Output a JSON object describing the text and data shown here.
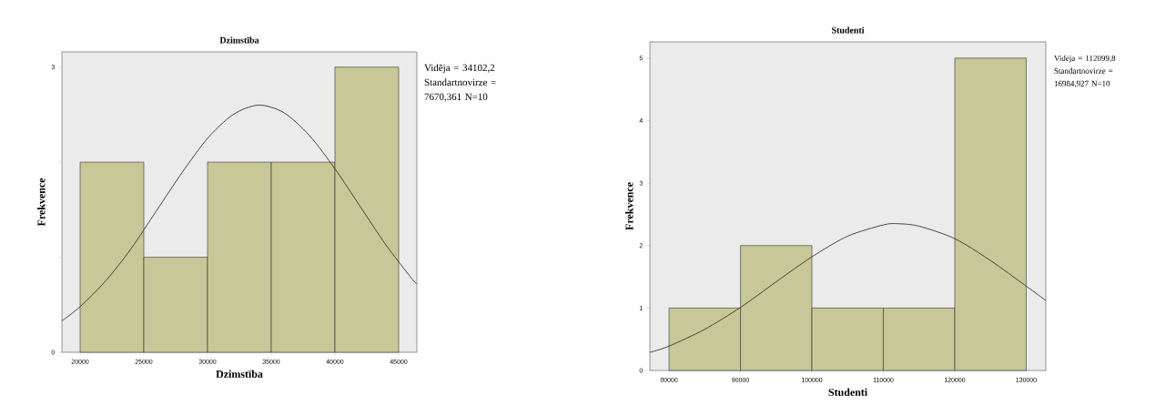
{
  "chart_data": [
    {
      "type": "histogram",
      "title": "Dzimstība",
      "xlabel": "Dzimstība",
      "ylabel": "Frekvence",
      "bins": [
        20000,
        25000,
        30000,
        35000,
        40000,
        45000
      ],
      "values": [
        2,
        1,
        2,
        2,
        3
      ],
      "color": "#c8c797",
      "xlim": [
        18570,
        46430
      ],
      "ylim": [
        0,
        3.16
      ],
      "xticks": [
        20000,
        25000,
        30000,
        35000,
        40000,
        45000
      ],
      "yticks": [
        0,
        {
          "value": 1,
          "label": null
        },
        {
          "value": 2,
          "label": null
        },
        3
      ],
      "grid": false,
      "annotations": [
        "Vidēja = 34102,2",
        "Standartnovirze = 7670,361 N=10"
      ],
      "series": [
        {
          "type": "line",
          "color": "#333333",
          "x": [
            18570,
            20000,
            22000,
            24000,
            26000,
            28000,
            30000,
            32000,
            34000,
            36000,
            38000,
            40000,
            42000,
            44000,
            46000,
            46430
          ],
          "values": [
            0.33,
            0.48,
            0.75,
            1.09,
            1.49,
            1.89,
            2.25,
            2.5,
            2.6,
            2.52,
            2.28,
            1.93,
            1.53,
            1.13,
            0.78,
            0.72
          ]
        }
      ]
    },
    {
      "type": "histogram",
      "title": "Studenti",
      "xlabel": "Studenti",
      "ylabel": "Frekvence",
      "bins": [
        80000,
        90000,
        100000,
        110000,
        120000,
        130000
      ],
      "values": [
        1,
        2,
        1,
        1,
        5
      ],
      "color": "#c8c797",
      "xlim": [
        77320,
        132750
      ],
      "ylim": [
        0,
        5.26
      ],
      "xticks": [
        80000,
        90000,
        100000,
        110000,
        120000,
        130000
      ],
      "yticks": [
        0,
        1,
        2,
        3,
        4,
        5
      ],
      "grid": false,
      "annotations": [
        "Vidēja = 112099,8",
        "Standartnovirze = 16984,927 N=10"
      ],
      "series": [
        {
          "type": "line",
          "color": "#333333",
          "x": [
            77320,
            80000,
            85000,
            90000,
            95000,
            100000,
            105000,
            110000,
            112000,
            115000,
            120000,
            125000,
            130000,
            132750
          ],
          "values": [
            0.29,
            0.39,
            0.66,
            1.01,
            1.42,
            1.82,
            2.15,
            2.33,
            2.35,
            2.31,
            2.11,
            1.76,
            1.35,
            1.12
          ]
        }
      ]
    }
  ]
}
